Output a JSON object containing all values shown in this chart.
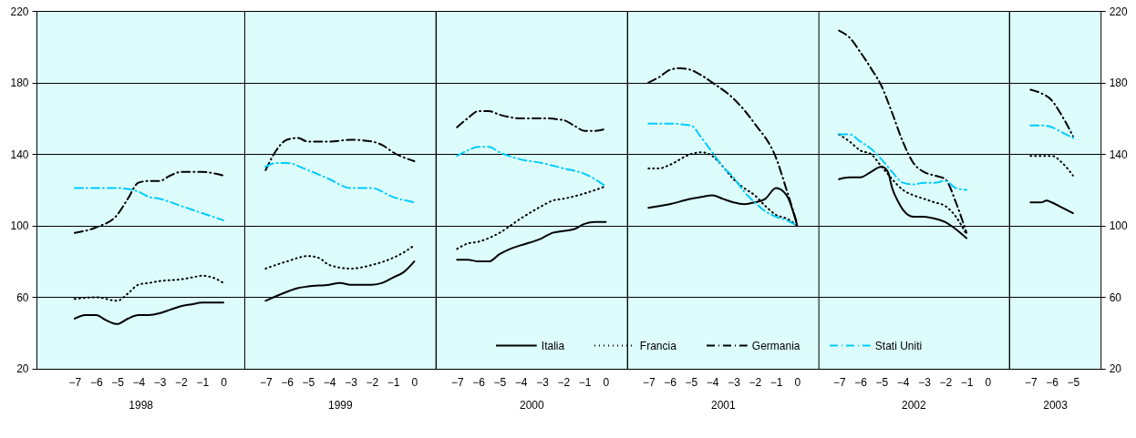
{
  "chart_data": [
    {
      "type": "line",
      "xlabel": "1998",
      "xlim": [
        -8.8,
        1
      ],
      "xticks": [
        -7,
        -6,
        -5,
        -4,
        -3,
        -2,
        -1,
        0
      ],
      "ylim": [
        20,
        220
      ],
      "yticks": [
        20,
        60,
        100,
        140,
        180,
        220
      ],
      "grid": "y",
      "series": [
        {
          "color": "#000000",
          "line_style": "solid",
          "x": [
            -7,
            -6.5,
            -6,
            -5.5,
            -5,
            -4.5,
            -4,
            -3.5,
            -3,
            -2.5,
            -2,
            -1.5,
            -1,
            -0.5,
            0
          ],
          "values": [
            48,
            50,
            50,
            47,
            45,
            48,
            50,
            50,
            51,
            53,
            55,
            56,
            57,
            57,
            57
          ]
        },
        {
          "color": "#000000",
          "line_style": "dotted",
          "x": [
            -7,
            -6,
            -5,
            -4.5,
            -4,
            -3.5,
            -3,
            -2,
            -1.5,
            -1,
            -0.5,
            0
          ],
          "values": [
            59,
            60,
            58,
            62,
            67,
            68,
            69,
            70,
            71,
            72,
            71,
            68
          ]
        },
        {
          "color": "#000000",
          "line_style": "dashed",
          "x": [
            -7,
            -6,
            -5,
            -4.5,
            -4,
            -3.5,
            -3,
            -2.5,
            -2,
            -1,
            0
          ],
          "values": [
            96,
            99,
            106,
            115,
            124,
            125,
            125,
            128,
            130,
            130,
            128
          ]
        },
        {
          "color": "#00ccff",
          "line_style": "dashed",
          "x": [
            -7,
            -5,
            -4,
            -3.5,
            -3,
            -2,
            -1,
            0
          ],
          "values": [
            121,
            121,
            119,
            116,
            115,
            111,
            107,
            103
          ]
        }
      ]
    },
    {
      "type": "line",
      "xlabel": "1999",
      "xlim": [
        -8,
        1
      ],
      "xticks": [
        -7,
        -6,
        -5,
        -4,
        -3,
        -2,
        -1,
        0
      ],
      "ylim": [
        20,
        220
      ],
      "yticks": [
        20,
        60,
        100,
        140,
        180,
        220
      ],
      "grid": "y",
      "tick_labels": "x",
      "series": [
        {
          "color": "#000000",
          "line_style": "solid",
          "x": [
            -7,
            -6,
            -5.5,
            -5,
            -4,
            -3.5,
            -3,
            -2,
            -1.5,
            -1,
            -0.5,
            0
          ],
          "values": [
            58,
            63,
            65,
            66,
            67,
            68,
            67,
            67,
            68,
            71,
            74,
            80
          ]
        },
        {
          "color": "#000000",
          "line_style": "dotted",
          "x": [
            -7,
            -6,
            -5,
            -4.5,
            -4,
            -3,
            -2,
            -1,
            -0.5,
            0
          ],
          "values": [
            76,
            80,
            83,
            82,
            78,
            76,
            78,
            82,
            85,
            89
          ]
        },
        {
          "color": "#000000",
          "line_style": "dashed",
          "x": [
            -7,
            -6.5,
            -6,
            -5.5,
            -5,
            -4,
            -3,
            -2,
            -1.5,
            -1,
            0
          ],
          "values": [
            131,
            142,
            148,
            149,
            147,
            147,
            148,
            147,
            145,
            141,
            136
          ]
        },
        {
          "color": "#00ccff",
          "line_style": "dashed",
          "x": [
            -7,
            -6.5,
            -6,
            -5,
            -4,
            -3,
            -2,
            -1,
            0
          ],
          "values": [
            133,
            135,
            135,
            131,
            126,
            121,
            121,
            116,
            113
          ]
        }
      ]
    },
    {
      "type": "line",
      "xlabel": "2000",
      "xlim": [
        -8,
        1
      ],
      "xticks": [
        -7,
        -6,
        -5,
        -4,
        -3,
        -2,
        -1,
        0
      ],
      "ylim": [
        20,
        220
      ],
      "yticks": [
        20,
        60,
        100,
        140,
        180,
        220
      ],
      "grid": "y",
      "tick_labels": "x",
      "series": [
        {
          "color": "#000000",
          "line_style": "solid",
          "x": [
            -7,
            -6.5,
            -6,
            -5.5,
            -5,
            -4.5,
            -4,
            -3,
            -2.5,
            -2,
            -1.5,
            -1,
            -0.5,
            0
          ],
          "values": [
            81,
            81,
            80,
            80,
            84,
            87,
            89,
            93,
            96,
            97,
            98,
            101,
            102,
            102
          ]
        },
        {
          "color": "#000000",
          "line_style": "dotted",
          "x": [
            -7,
            -6.5,
            -6,
            -5,
            -4,
            -3,
            -2.5,
            -2,
            -1,
            0
          ],
          "values": [
            87,
            90,
            91,
            96,
            104,
            111,
            114,
            115,
            118,
            122
          ]
        },
        {
          "color": "#000000",
          "line_style": "dashed",
          "x": [
            -7,
            -6.5,
            -6,
            -5.5,
            -5,
            -4,
            -3,
            -2,
            -1.5,
            -1,
            -0.5,
            0
          ],
          "values": [
            155,
            160,
            164,
            164,
            162,
            160,
            160,
            159,
            156,
            153,
            153,
            154
          ]
        },
        {
          "color": "#00ccff",
          "line_style": "dashed",
          "x": [
            -7,
            -6.5,
            -6,
            -5.5,
            -5,
            -4,
            -3,
            -2,
            -1,
            0
          ],
          "values": [
            139,
            142,
            144,
            144,
            141,
            137,
            135,
            132,
            129,
            122
          ]
        }
      ]
    },
    {
      "type": "line",
      "xlabel": "2001",
      "xlim": [
        -8,
        1
      ],
      "xticks": [
        -7,
        -6,
        -5,
        -4,
        -3,
        -2,
        -1,
        0
      ],
      "ylim": [
        20,
        220
      ],
      "yticks": [
        20,
        60,
        100,
        140,
        180,
        220
      ],
      "grid": "y",
      "legend": "bottom",
      "tick_labels": "x",
      "series": [
        {
          "name": "Italia",
          "color": "#000000",
          "line_style": "solid",
          "x": [
            -7,
            -6,
            -5,
            -4.5,
            -4,
            -3.5,
            -3,
            -2.5,
            -2,
            -1.5,
            -1,
            -0.5,
            0
          ],
          "values": [
            110,
            112,
            115,
            116,
            117,
            115,
            113,
            112,
            113,
            115,
            121,
            117,
            100
          ]
        },
        {
          "name": "Francia",
          "color": "#000000",
          "line_style": "dotted",
          "x": [
            -7,
            -6.5,
            -6,
            -5,
            -4.5,
            -4,
            -3.5,
            -3,
            -2.5,
            -2,
            -1.5,
            -1,
            -0.5,
            0
          ],
          "values": [
            132,
            132,
            134,
            140,
            141,
            139,
            133,
            126,
            121,
            117,
            111,
            106,
            104,
            100
          ]
        },
        {
          "name": "Germania",
          "color": "#000000",
          "line_style": "dashed",
          "x": [
            -7,
            -6.5,
            -6,
            -5.5,
            -5,
            -4.5,
            -4,
            -3,
            -2,
            -1,
            -0.5,
            0
          ],
          "values": [
            180,
            183,
            187,
            188,
            187,
            184,
            180,
            171,
            157,
            138,
            120,
            101
          ]
        },
        {
          "name": "Stati Uniti",
          "color": "#00ccff",
          "line_style": "dashed",
          "x": [
            -7,
            -6,
            -5,
            -4.5,
            -4,
            -3.5,
            -3,
            -2.5,
            -2,
            -1.5,
            -1,
            -0.5,
            0
          ],
          "values": [
            157,
            157,
            156,
            149,
            141,
            133,
            127,
            119,
            113,
            108,
            105,
            103,
            100
          ]
        }
      ]
    },
    {
      "type": "line",
      "xlabel": "2002",
      "xlim": [
        -8,
        1
      ],
      "xticks": [
        -7,
        -6,
        -5,
        -4,
        -3,
        -2,
        -1,
        0
      ],
      "ylim": [
        20,
        220
      ],
      "yticks": [
        20,
        60,
        100,
        140,
        180,
        220
      ],
      "grid": "y",
      "tick_labels": "x",
      "series": [
        {
          "color": "#000000",
          "line_style": "solid",
          "x": [
            -7,
            -6.5,
            -6,
            -5.5,
            -5,
            -4.7,
            -4.5,
            -4.2,
            -4,
            -3.5,
            -3,
            -2.5,
            -2,
            -1.5,
            -1
          ],
          "values": [
            126,
            127,
            127,
            130,
            133,
            130,
            121,
            113,
            109,
            105,
            105,
            104,
            102,
            98,
            93
          ]
        },
        {
          "color": "#000000",
          "line_style": "dotted",
          "x": [
            -7,
            -6.5,
            -6,
            -5.5,
            -5,
            -4.5,
            -4,
            -3.5,
            -3,
            -2.5,
            -2,
            -1.5,
            -1
          ],
          "values": [
            151,
            147,
            142,
            140,
            133,
            126,
            120,
            117,
            115,
            113,
            111,
            105,
            95
          ]
        },
        {
          "color": "#000000",
          "line_style": "dashed",
          "x": [
            -7,
            -6.5,
            -6,
            -5.5,
            -5,
            -4.5,
            -4,
            -3.5,
            -3,
            -2.5,
            -2,
            -1.5,
            -1
          ],
          "values": [
            209,
            205,
            197,
            188,
            178,
            163,
            147,
            135,
            130,
            128,
            126,
            113,
            96
          ]
        },
        {
          "color": "#00ccff",
          "line_style": "dashed",
          "x": [
            -7,
            -6.5,
            -6,
            -5.5,
            -5,
            -4.5,
            -4,
            -3.5,
            -3,
            -2.5,
            -2,
            -1.5,
            -1
          ],
          "values": [
            151,
            151,
            147,
            143,
            137,
            130,
            124,
            123,
            124,
            124,
            125,
            121,
            120
          ]
        }
      ]
    },
    {
      "type": "line",
      "xlabel": "2003",
      "xlim": [
        -8,
        -3.7
      ],
      "xticks": [
        -7,
        -6,
        -5
      ],
      "ylim": [
        20,
        220
      ],
      "yticks": [
        20,
        60,
        100,
        140,
        180,
        220
      ],
      "grid": "y",
      "series": [
        {
          "color": "#000000",
          "line_style": "solid",
          "x": [
            -7,
            -6.5,
            -6.25,
            -6,
            -5.5,
            -5
          ],
          "values": [
            113,
            113,
            114,
            113,
            110,
            107
          ]
        },
        {
          "color": "#000000",
          "line_style": "dotted",
          "x": [
            -7,
            -6,
            -5.5,
            -5
          ],
          "values": [
            139,
            139,
            135,
            128
          ]
        },
        {
          "color": "#000000",
          "line_style": "dashed",
          "x": [
            -7,
            -6.5,
            -6,
            -5.5,
            -5
          ],
          "values": [
            176,
            174,
            170,
            161,
            150
          ]
        },
        {
          "color": "#00ccff",
          "line_style": "dashed",
          "x": [
            -7,
            -6.5,
            -6,
            -5.5,
            -5
          ],
          "values": [
            156,
            156,
            155,
            152,
            149
          ]
        }
      ]
    }
  ]
}
